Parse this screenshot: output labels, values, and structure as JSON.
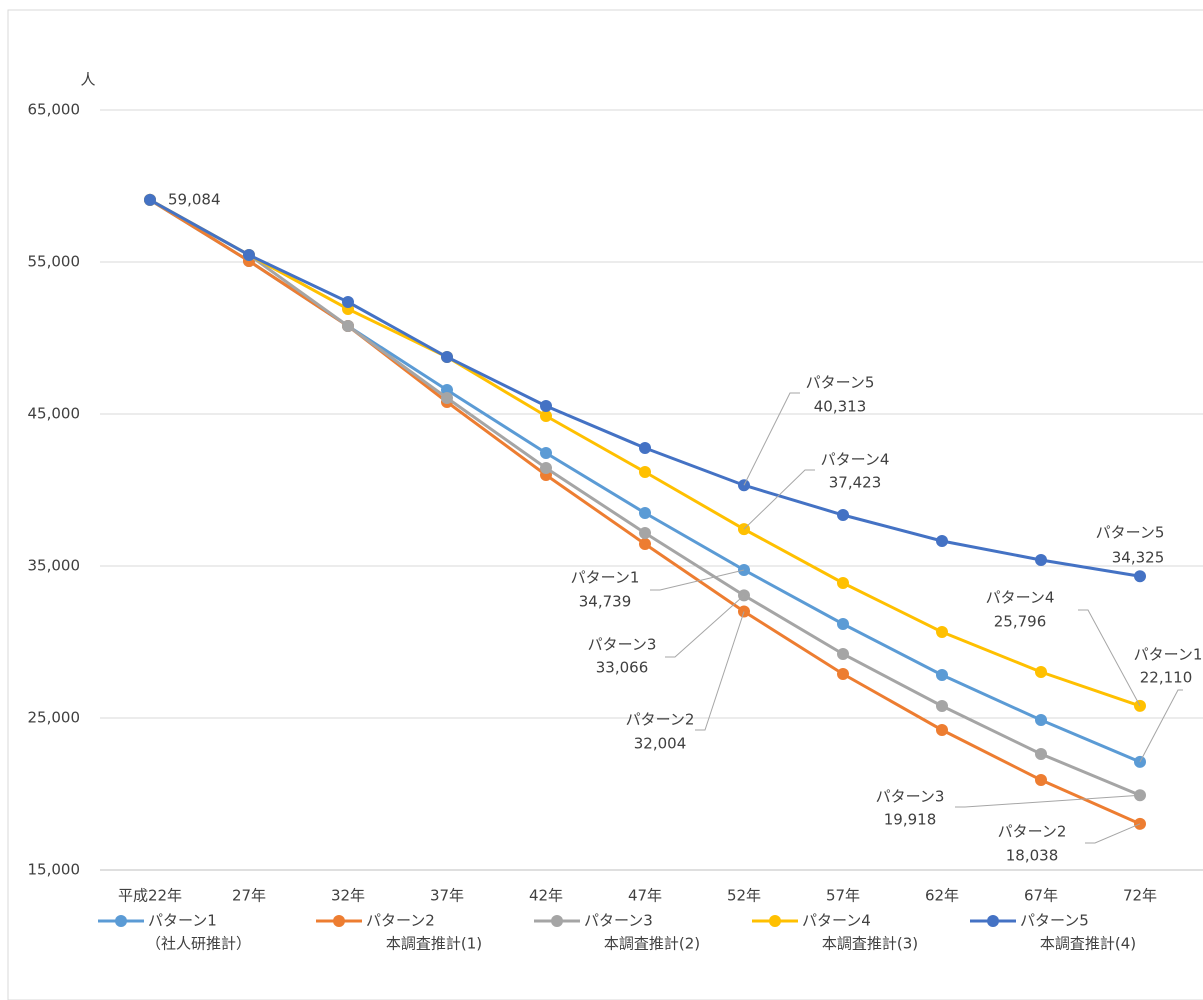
{
  "chart_data": {
    "type": "line",
    "y_label": "人",
    "categories": [
      "平成22年",
      "27年",
      "32年",
      "37年",
      "42年",
      "47年",
      "52年",
      "57年",
      "62年",
      "67年",
      "72年"
    ],
    "ylim": [
      15000,
      65000
    ],
    "yticks": [
      {
        "value": 15000,
        "label": "15,000"
      },
      {
        "value": 25000,
        "label": "25,000"
      },
      {
        "value": 35000,
        "label": "35,000"
      },
      {
        "value": 45000,
        "label": "45,000"
      },
      {
        "value": 55000,
        "label": "55,000"
      },
      {
        "value": 65000,
        "label": "65,000"
      }
    ],
    "grid": true,
    "legend": "bottom",
    "series": [
      {
        "name": "パターン1",
        "legend_note": "（社人研推計）",
        "color": "#5b9bd5",
        "values": [
          59084,
          55066,
          50789,
          46579,
          42434,
          38487,
          34739,
          31184,
          27829,
          24868,
          22110
        ],
        "value_labels": [
          null,
          null,
          null,
          null,
          null,
          null,
          "34,739",
          null,
          null,
          null,
          "22,110"
        ]
      },
      {
        "name": "パターン2",
        "legend_note": "本調査推計(1)",
        "color": "#ed7d31",
        "values": [
          59084,
          55066,
          50789,
          45789,
          40987,
          36447,
          32004,
          27895,
          24211,
          20921,
          18038
        ],
        "value_labels": [
          null,
          null,
          null,
          null,
          null,
          null,
          "32,004",
          null,
          null,
          null,
          "18,038"
        ]
      },
      {
        "name": "パターン3",
        "legend_note": "本調査推計(2)",
        "color": "#a5a5a5",
        "values": [
          59084,
          55461,
          50789,
          46053,
          41447,
          37171,
          33066,
          29211,
          25789,
          22632,
          19918
        ],
        "value_labels": [
          null,
          null,
          null,
          null,
          null,
          null,
          "33,066",
          null,
          null,
          null,
          "19,918"
        ]
      },
      {
        "name": "パターン4",
        "legend_note": "本調査推計(3)",
        "color": "#ffc000",
        "values": [
          59084,
          55461,
          51908,
          48750,
          44868,
          41184,
          37423,
          33882,
          30658,
          28026,
          25796
        ],
        "value_labels": [
          null,
          null,
          null,
          null,
          null,
          null,
          "37,423",
          null,
          null,
          null,
          "25,796"
        ]
      },
      {
        "name": "パターン5",
        "legend_note": "本調査推計(4)",
        "color": "#4472c4",
        "values": [
          59084,
          55461,
          52368,
          48750,
          45526,
          42763,
          40313,
          38355,
          36645,
          35395,
          34325
        ],
        "value_labels": [
          "59,084",
          null,
          null,
          null,
          null,
          null,
          "40,313",
          null,
          null,
          null,
          "34,325"
        ]
      }
    ]
  }
}
